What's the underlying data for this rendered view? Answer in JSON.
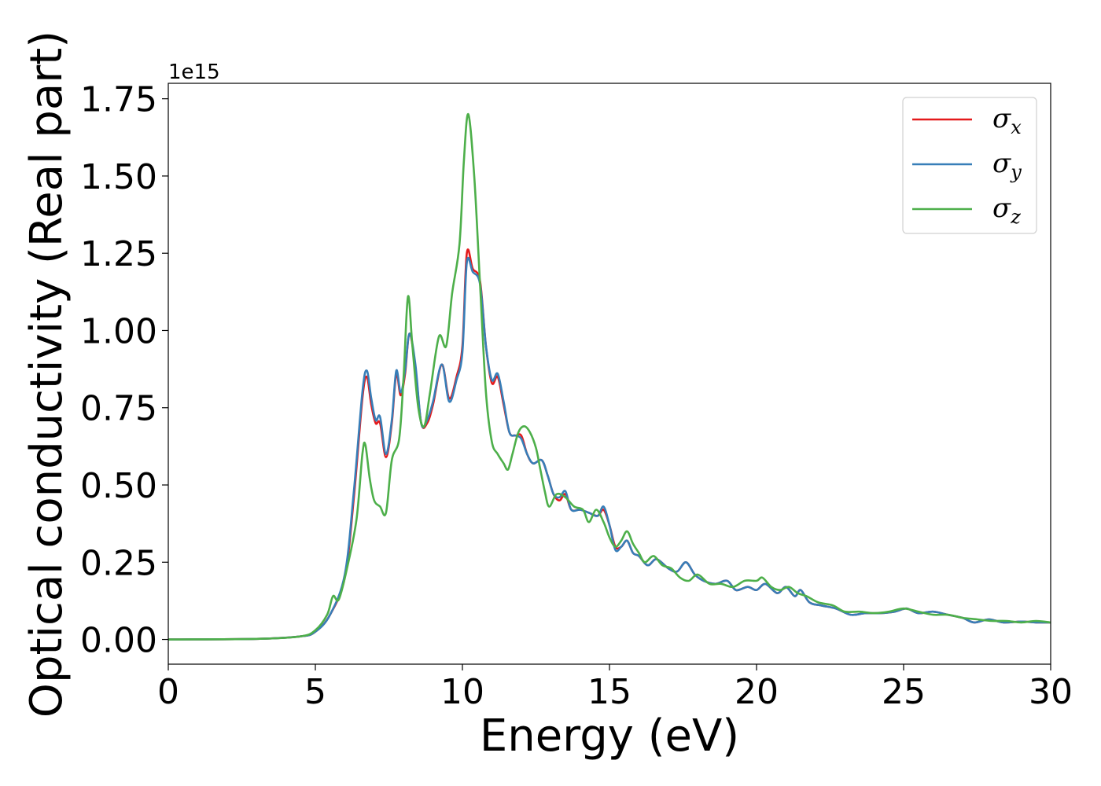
{
  "chart_data": {
    "type": "line",
    "xlabel": "Energy (eV)",
    "ylabel": "Optical conductivity (Real part)",
    "offset_text": "1e15",
    "xlim": [
      0,
      30
    ],
    "ylim": [
      -0.08,
      1.8
    ],
    "x_ticks": [
      0,
      5,
      10,
      15,
      20,
      25,
      30
    ],
    "x_tick_labels": [
      "0",
      "5",
      "10",
      "15",
      "20",
      "25",
      "30"
    ],
    "y_ticks": [
      0.0,
      0.25,
      0.5,
      0.75,
      1.0,
      1.25,
      1.5,
      1.75
    ],
    "y_tick_labels": [
      "0.00",
      "0.25",
      "0.50",
      "0.75",
      "1.00",
      "1.25",
      "1.50",
      "1.75"
    ],
    "grid": false,
    "legend_position": "top-right",
    "series": [
      {
        "name": "σx",
        "legend_symbol": "σ",
        "legend_subscript": "x",
        "color": "#e41a1c",
        "points": [
          [
            0,
            0
          ],
          [
            3,
            0.002
          ],
          [
            4.5,
            0.01
          ],
          [
            5,
            0.025
          ],
          [
            5.5,
            0.08
          ],
          [
            6,
            0.2
          ],
          [
            6.3,
            0.45
          ],
          [
            6.6,
            0.78
          ],
          [
            6.75,
            0.85
          ],
          [
            6.9,
            0.76
          ],
          [
            7.05,
            0.7
          ],
          [
            7.2,
            0.7
          ],
          [
            7.4,
            0.59
          ],
          [
            7.6,
            0.7
          ],
          [
            7.75,
            0.86
          ],
          [
            7.9,
            0.79
          ],
          [
            8.05,
            0.86
          ],
          [
            8.2,
            0.99
          ],
          [
            8.4,
            0.88
          ],
          [
            8.6,
            0.7
          ],
          [
            8.8,
            0.7
          ],
          [
            9.0,
            0.76
          ],
          [
            9.3,
            0.89
          ],
          [
            9.55,
            0.78
          ],
          [
            9.8,
            0.85
          ],
          [
            10.0,
            0.95
          ],
          [
            10.15,
            1.25
          ],
          [
            10.35,
            1.2
          ],
          [
            10.6,
            1.16
          ],
          [
            10.8,
            0.95
          ],
          [
            11.0,
            0.83
          ],
          [
            11.2,
            0.85
          ],
          [
            11.4,
            0.76
          ],
          [
            11.6,
            0.67
          ],
          [
            11.8,
            0.66
          ],
          [
            12.0,
            0.66
          ],
          [
            12.2,
            0.6
          ],
          [
            12.4,
            0.57
          ],
          [
            12.7,
            0.58
          ],
          [
            12.9,
            0.53
          ],
          [
            13.1,
            0.47
          ],
          [
            13.3,
            0.45
          ],
          [
            13.5,
            0.47
          ],
          [
            13.7,
            0.42
          ],
          [
            14.0,
            0.42
          ],
          [
            14.3,
            0.41
          ],
          [
            14.6,
            0.4
          ],
          [
            14.8,
            0.42
          ],
          [
            15.0,
            0.37
          ],
          [
            15.2,
            0.3
          ],
          [
            15.4,
            0.3
          ],
          [
            15.6,
            0.32
          ],
          [
            15.8,
            0.28
          ],
          [
            16.0,
            0.27
          ],
          [
            16.3,
            0.24
          ],
          [
            16.6,
            0.26
          ],
          [
            17.0,
            0.23
          ],
          [
            17.3,
            0.22
          ],
          [
            17.6,
            0.25
          ],
          [
            17.9,
            0.21
          ],
          [
            18.2,
            0.19
          ],
          [
            18.6,
            0.18
          ],
          [
            19.0,
            0.19
          ],
          [
            19.3,
            0.16
          ],
          [
            19.7,
            0.17
          ],
          [
            20.0,
            0.16
          ],
          [
            20.3,
            0.18
          ],
          [
            20.7,
            0.15
          ],
          [
            21.0,
            0.17
          ],
          [
            21.3,
            0.14
          ],
          [
            21.5,
            0.16
          ],
          [
            21.8,
            0.12
          ],
          [
            22.2,
            0.11
          ],
          [
            22.7,
            0.1
          ],
          [
            23.2,
            0.08
          ],
          [
            23.7,
            0.085
          ],
          [
            24.2,
            0.085
          ],
          [
            24.7,
            0.09
          ],
          [
            25.1,
            0.1
          ],
          [
            25.5,
            0.085
          ],
          [
            26.0,
            0.09
          ],
          [
            26.5,
            0.08
          ],
          [
            27.0,
            0.07
          ],
          [
            27.4,
            0.055
          ],
          [
            27.9,
            0.065
          ],
          [
            28.4,
            0.055
          ],
          [
            29.0,
            0.058
          ],
          [
            29.5,
            0.055
          ],
          [
            30.0,
            0.055
          ]
        ]
      },
      {
        "name": "σy",
        "legend_symbol": "σ",
        "legend_subscript": "y",
        "color": "#377eb8",
        "points": [
          [
            0,
            0
          ],
          [
            3,
            0.002
          ],
          [
            4.5,
            0.01
          ],
          [
            5,
            0.025
          ],
          [
            5.5,
            0.08
          ],
          [
            6,
            0.21
          ],
          [
            6.3,
            0.47
          ],
          [
            6.6,
            0.8
          ],
          [
            6.75,
            0.87
          ],
          [
            6.9,
            0.78
          ],
          [
            7.05,
            0.71
          ],
          [
            7.2,
            0.72
          ],
          [
            7.4,
            0.6
          ],
          [
            7.6,
            0.71
          ],
          [
            7.75,
            0.87
          ],
          [
            7.9,
            0.8
          ],
          [
            8.05,
            0.87
          ],
          [
            8.2,
            0.99
          ],
          [
            8.4,
            0.89
          ],
          [
            8.6,
            0.7
          ],
          [
            8.8,
            0.71
          ],
          [
            9.0,
            0.77
          ],
          [
            9.3,
            0.89
          ],
          [
            9.55,
            0.77
          ],
          [
            9.8,
            0.84
          ],
          [
            10.0,
            0.93
          ],
          [
            10.15,
            1.22
          ],
          [
            10.35,
            1.19
          ],
          [
            10.6,
            1.15
          ],
          [
            10.8,
            0.95
          ],
          [
            11.0,
            0.84
          ],
          [
            11.2,
            0.86
          ],
          [
            11.4,
            0.77
          ],
          [
            11.6,
            0.67
          ],
          [
            11.8,
            0.66
          ],
          [
            12.0,
            0.65
          ],
          [
            12.2,
            0.6
          ],
          [
            12.4,
            0.57
          ],
          [
            12.7,
            0.58
          ],
          [
            12.9,
            0.53
          ],
          [
            13.1,
            0.47
          ],
          [
            13.3,
            0.46
          ],
          [
            13.5,
            0.48
          ],
          [
            13.7,
            0.42
          ],
          [
            14.0,
            0.42
          ],
          [
            14.3,
            0.41
          ],
          [
            14.6,
            0.4
          ],
          [
            14.8,
            0.43
          ],
          [
            15.0,
            0.37
          ],
          [
            15.2,
            0.29
          ],
          [
            15.4,
            0.3
          ],
          [
            15.6,
            0.32
          ],
          [
            15.8,
            0.28
          ],
          [
            16.0,
            0.27
          ],
          [
            16.3,
            0.24
          ],
          [
            16.6,
            0.26
          ],
          [
            17.0,
            0.23
          ],
          [
            17.3,
            0.22
          ],
          [
            17.6,
            0.25
          ],
          [
            17.9,
            0.21
          ],
          [
            18.2,
            0.19
          ],
          [
            18.6,
            0.18
          ],
          [
            19.0,
            0.19
          ],
          [
            19.3,
            0.16
          ],
          [
            19.7,
            0.17
          ],
          [
            20.0,
            0.16
          ],
          [
            20.3,
            0.18
          ],
          [
            20.7,
            0.15
          ],
          [
            21.0,
            0.17
          ],
          [
            21.3,
            0.14
          ],
          [
            21.5,
            0.16
          ],
          [
            21.8,
            0.12
          ],
          [
            22.2,
            0.11
          ],
          [
            22.7,
            0.1
          ],
          [
            23.2,
            0.08
          ],
          [
            23.7,
            0.085
          ],
          [
            24.2,
            0.085
          ],
          [
            24.7,
            0.09
          ],
          [
            25.1,
            0.1
          ],
          [
            25.5,
            0.085
          ],
          [
            26.0,
            0.09
          ],
          [
            26.5,
            0.08
          ],
          [
            27.0,
            0.07
          ],
          [
            27.4,
            0.055
          ],
          [
            27.9,
            0.065
          ],
          [
            28.4,
            0.055
          ],
          [
            29.0,
            0.058
          ],
          [
            29.5,
            0.055
          ],
          [
            30.0,
            0.055
          ]
        ]
      },
      {
        "name": "σz",
        "legend_symbol": "σ",
        "legend_subscript": "z",
        "color": "#4daf4a",
        "points": [
          [
            0,
            0
          ],
          [
            3,
            0.002
          ],
          [
            4.5,
            0.01
          ],
          [
            5,
            0.03
          ],
          [
            5.4,
            0.08
          ],
          [
            5.6,
            0.14
          ],
          [
            5.8,
            0.13
          ],
          [
            6.1,
            0.24
          ],
          [
            6.4,
            0.39
          ],
          [
            6.6,
            0.6
          ],
          [
            6.7,
            0.63
          ],
          [
            6.85,
            0.52
          ],
          [
            7.0,
            0.45
          ],
          [
            7.2,
            0.43
          ],
          [
            7.4,
            0.41
          ],
          [
            7.6,
            0.58
          ],
          [
            7.85,
            0.65
          ],
          [
            8.0,
            0.85
          ],
          [
            8.15,
            1.11
          ],
          [
            8.3,
            0.95
          ],
          [
            8.5,
            0.75
          ],
          [
            8.7,
            0.69
          ],
          [
            8.9,
            0.8
          ],
          [
            9.2,
            0.98
          ],
          [
            9.45,
            0.95
          ],
          [
            9.65,
            1.12
          ],
          [
            9.9,
            1.28
          ],
          [
            10.05,
            1.55
          ],
          [
            10.2,
            1.7
          ],
          [
            10.4,
            1.5
          ],
          [
            10.6,
            1.15
          ],
          [
            10.8,
            0.8
          ],
          [
            11.0,
            0.64
          ],
          [
            11.2,
            0.6
          ],
          [
            11.4,
            0.57
          ],
          [
            11.55,
            0.55
          ],
          [
            11.7,
            0.6
          ],
          [
            11.9,
            0.67
          ],
          [
            12.1,
            0.69
          ],
          [
            12.3,
            0.67
          ],
          [
            12.5,
            0.62
          ],
          [
            12.65,
            0.55
          ],
          [
            12.8,
            0.48
          ],
          [
            12.95,
            0.43
          ],
          [
            13.2,
            0.47
          ],
          [
            13.5,
            0.46
          ],
          [
            13.8,
            0.43
          ],
          [
            14.1,
            0.42
          ],
          [
            14.3,
            0.38
          ],
          [
            14.55,
            0.42
          ],
          [
            14.8,
            0.38
          ],
          [
            15.0,
            0.33
          ],
          [
            15.2,
            0.3
          ],
          [
            15.4,
            0.32
          ],
          [
            15.6,
            0.35
          ],
          [
            15.8,
            0.31
          ],
          [
            16.0,
            0.28
          ],
          [
            16.2,
            0.25
          ],
          [
            16.5,
            0.27
          ],
          [
            16.8,
            0.24
          ],
          [
            17.1,
            0.23
          ],
          [
            17.4,
            0.2
          ],
          [
            17.7,
            0.19
          ],
          [
            18.0,
            0.21
          ],
          [
            18.4,
            0.18
          ],
          [
            18.8,
            0.18
          ],
          [
            19.2,
            0.17
          ],
          [
            19.6,
            0.19
          ],
          [
            20.0,
            0.19
          ],
          [
            20.2,
            0.2
          ],
          [
            20.5,
            0.17
          ],
          [
            20.8,
            0.16
          ],
          [
            21.1,
            0.17
          ],
          [
            21.4,
            0.15
          ],
          [
            21.7,
            0.14
          ],
          [
            22.1,
            0.12
          ],
          [
            22.6,
            0.11
          ],
          [
            23.0,
            0.09
          ],
          [
            23.5,
            0.09
          ],
          [
            24.0,
            0.085
          ],
          [
            24.5,
            0.09
          ],
          [
            25.0,
            0.1
          ],
          [
            25.5,
            0.09
          ],
          [
            26.0,
            0.08
          ],
          [
            26.5,
            0.08
          ],
          [
            27.0,
            0.07
          ],
          [
            27.5,
            0.065
          ],
          [
            28.0,
            0.06
          ],
          [
            28.5,
            0.06
          ],
          [
            29.0,
            0.055
          ],
          [
            29.5,
            0.06
          ],
          [
            30.0,
            0.055
          ]
        ]
      }
    ]
  }
}
